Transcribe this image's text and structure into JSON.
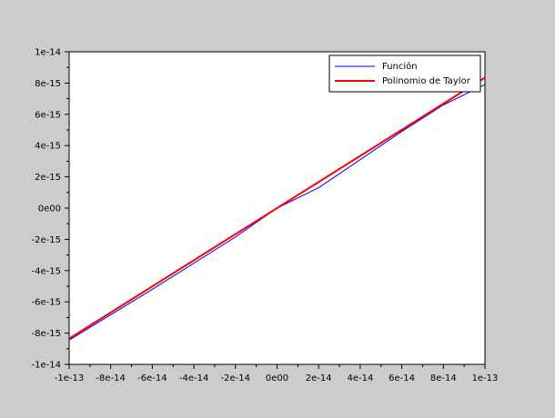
{
  "chart_data": {
    "type": "line",
    "title": "",
    "xlabel": "",
    "ylabel": "",
    "xlim": [
      -1e-13,
      1e-13
    ],
    "ylim": [
      -1e-14,
      1e-14
    ],
    "x_ticks": [
      {
        "value": -1e-13,
        "label": "-1e-13"
      },
      {
        "value": -8e-14,
        "label": "-8e-14"
      },
      {
        "value": -6e-14,
        "label": "-6e-14"
      },
      {
        "value": -4e-14,
        "label": "-4e-14"
      },
      {
        "value": -2e-14,
        "label": "-2e-14"
      },
      {
        "value": 0,
        "label": "0e00"
      },
      {
        "value": 2e-14,
        "label": "2e-14"
      },
      {
        "value": 4e-14,
        "label": "4e-14"
      },
      {
        "value": 6e-14,
        "label": "6e-14"
      },
      {
        "value": 8e-14,
        "label": "8e-14"
      },
      {
        "value": 1e-13,
        "label": "1e-13"
      }
    ],
    "y_ticks": [
      {
        "value": 1e-14,
        "label": "1e-14"
      },
      {
        "value": 8e-15,
        "label": "8e-15"
      },
      {
        "value": 6e-15,
        "label": "6e-15"
      },
      {
        "value": 4e-15,
        "label": "4e-15"
      },
      {
        "value": 2e-15,
        "label": "2e-15"
      },
      {
        "value": 0,
        "label": "0e00"
      },
      {
        "value": -2e-15,
        "label": "-2e-15"
      },
      {
        "value": -4e-15,
        "label": "-4e-15"
      },
      {
        "value": -6e-15,
        "label": "-6e-15"
      },
      {
        "value": -8e-15,
        "label": "-8e-15"
      },
      {
        "value": -1e-14,
        "label": "-1e-14"
      }
    ],
    "grid": false,
    "legend_position": "top-right",
    "series": [
      {
        "name": "Función",
        "color": "#0000ff",
        "x": [
          -1e-13,
          -6e-14,
          -2e-14,
          0,
          2e-14,
          4e-14,
          6e-14,
          8e-14,
          1e-13
        ],
        "y": [
          -8.45e-15,
          -5.2e-15,
          -1.85e-15,
          0,
          1.3e-15,
          3.1e-15,
          4.9e-15,
          6.6e-15,
          7.9e-15
        ]
      },
      {
        "name": "Polinomio de Taylor",
        "color": "#ff0000",
        "x": [
          -1e-13,
          1e-13
        ],
        "y": [
          -8.35e-15,
          8.35e-15
        ]
      }
    ]
  }
}
